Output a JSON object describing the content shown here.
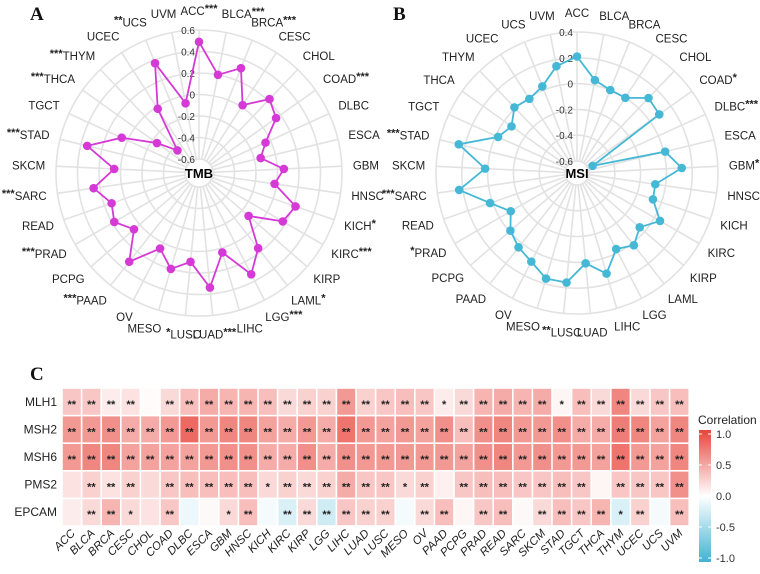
{
  "panels": {
    "a": "A",
    "b": "B",
    "c": "C"
  },
  "colors": {
    "tmb": "#d63ad6",
    "msi": "#45b8d6",
    "grid": "#e2e2e2",
    "neg": "#3fb4d2",
    "zero": "#ffffff",
    "pos": "#e8453c"
  },
  "chart_data": [
    {
      "type": "radar",
      "center_label": "TMB",
      "rlim": [
        -0.6,
        0.6
      ],
      "ticks": [
        "0.6",
        "0.4",
        "0.2",
        "0",
        "-0.2",
        "-0.4",
        "-0.6"
      ],
      "categories": [
        "ACC",
        "BLCA",
        "BRCA",
        "CESC",
        "CHOL",
        "COAD",
        "DLBC",
        "ESCA",
        "GBM",
        "HNSC",
        "KICH",
        "KIRC",
        "KIRP",
        "LAML",
        "LGG",
        "LIHC",
        "LUAD",
        "LUSC",
        "MESO",
        "OV",
        "PAAD",
        "PCPG",
        "PRAD",
        "READ",
        "SARC",
        "SKCM",
        "STAD",
        "TGCT",
        "THCA",
        "THYM",
        "UCEC",
        "UCS",
        "UVM"
      ],
      "values": [
        0.49,
        0.2,
        0.32,
        0.02,
        0.22,
        0.15,
        -0.05,
        -0.14,
        0.06,
        -0.02,
        0.22,
        0.17,
        -0.12,
        0.16,
        0.33,
        0.04,
        0.34,
        0.1,
        0.2,
        0.06,
        0.32,
        0.07,
        0.18,
        0.13,
        0.26,
        0.06,
        0.34,
        0.06,
        -0.25,
        -0.44,
        -0.02,
        0.37,
        -0.07
      ],
      "significance": [
        "***",
        "***",
        "***",
        "",
        "",
        "***",
        "",
        "",
        "",
        "",
        "*",
        "***",
        "",
        "*",
        "***",
        "",
        "***",
        "*",
        "",
        "",
        "***",
        "",
        "***",
        "",
        "***",
        "",
        "***",
        "",
        "***",
        "***",
        "",
        "**",
        ""
      ]
    },
    {
      "type": "radar",
      "center_label": "MSI",
      "rlim": [
        -0.6,
        0.4
      ],
      "ticks": [
        "0.4",
        "0.2",
        "0",
        "-0.2",
        "-0.4",
        "-0.6"
      ],
      "categories": [
        "ACC",
        "BLCA",
        "BRCA",
        "CESC",
        "CHOL",
        "COAD",
        "DLBC",
        "ESCA",
        "GBM",
        "HNSC",
        "KICH",
        "KIRC",
        "KIRP",
        "LAML",
        "LGG",
        "LIHC",
        "LUAD",
        "LUSC",
        "MESO",
        "OV",
        "PAAD",
        "PCPG",
        "PRAD",
        "READ",
        "SARC",
        "SKCM",
        "STAD",
        "TGCT",
        "THCA",
        "THYM",
        "UCEC",
        "UCS",
        "UVM"
      ],
      "values": [
        0.21,
        0.04,
        0.0,
        0.0,
        0.11,
        0.09,
        -0.56,
        0.01,
        0.12,
        -0.08,
        -0.07,
        0.05,
        -0.05,
        0.02,
        -0.03,
        0.12,
        0.01,
        0.16,
        0.16,
        0.08,
        0.04,
        -0.01,
        -0.1,
        0.02,
        0.23,
        0.02,
        0.25,
        -0.02,
        -0.07,
        0.01,
        -0.01,
        0.03,
        0.15
      ],
      "significance": [
        "",
        "",
        "",
        "",
        "",
        "*",
        "***",
        "",
        "*",
        "",
        "",
        "",
        "",
        "",
        "",
        "",
        "",
        "**",
        "",
        "",
        "",
        "",
        "*",
        "",
        "***",
        "",
        "***",
        "",
        "",
        "",
        "",
        "",
        ""
      ]
    },
    {
      "type": "heatmap",
      "rows": [
        "MLH1",
        "MSH2",
        "MSH6",
        "PMS2",
        "EPCAM"
      ],
      "columns": [
        "ACC",
        "BLCA",
        "BRCA",
        "CESC",
        "CHOL",
        "COAD",
        "DLBC",
        "ESCA",
        "GBM",
        "HNSC",
        "KICH",
        "KIRC",
        "KIRP",
        "LGG",
        "LIHC",
        "LUAD",
        "LUSC",
        "MESO",
        "OV",
        "PAAD",
        "PCPG",
        "PRAD",
        "READ",
        "SARC",
        "SKCM",
        "STAD",
        "TGCT",
        "THCA",
        "THYM",
        "UCEC",
        "UCS",
        "UVM"
      ],
      "values": [
        [
          0.3,
          0.3,
          0.1,
          0.15,
          0.02,
          0.2,
          0.35,
          0.45,
          0.4,
          0.4,
          0.35,
          0.2,
          0.25,
          0.25,
          0.55,
          0.25,
          0.3,
          0.35,
          0.3,
          0.1,
          0.2,
          0.4,
          0.45,
          0.4,
          0.45,
          0.05,
          0.35,
          0.2,
          0.65,
          0.2,
          0.3,
          0.35
        ],
        [
          0.55,
          0.55,
          0.6,
          0.45,
          0.45,
          0.55,
          0.8,
          0.55,
          0.65,
          0.65,
          0.5,
          0.45,
          0.55,
          0.45,
          0.75,
          0.55,
          0.5,
          0.55,
          0.5,
          0.6,
          0.35,
          0.6,
          0.65,
          0.55,
          0.55,
          0.6,
          0.45,
          0.45,
          0.7,
          0.65,
          0.5,
          0.65
        ],
        [
          0.55,
          0.65,
          0.65,
          0.5,
          0.5,
          0.5,
          0.5,
          0.55,
          0.6,
          0.6,
          0.45,
          0.45,
          0.6,
          0.45,
          0.6,
          0.55,
          0.55,
          0.55,
          0.55,
          0.55,
          0.5,
          0.6,
          0.65,
          0.55,
          0.6,
          0.55,
          0.55,
          0.5,
          0.75,
          0.55,
          0.5,
          0.65
        ],
        [
          0.15,
          0.25,
          0.15,
          0.25,
          0.2,
          0.3,
          0.35,
          0.35,
          0.35,
          0.35,
          0.2,
          0.25,
          0.2,
          0.25,
          0.45,
          0.3,
          0.3,
          0.2,
          0.25,
          0.08,
          0.3,
          0.35,
          0.35,
          0.3,
          0.3,
          0.35,
          0.3,
          0.05,
          0.3,
          0.3,
          0.3,
          0.6
        ],
        [
          0.1,
          0.2,
          0.4,
          0.2,
          0.15,
          0.3,
          -0.1,
          0.03,
          0.2,
          0.35,
          -0.05,
          -0.2,
          0.2,
          -0.25,
          0.3,
          0.25,
          0.25,
          -0.05,
          0.2,
          0.35,
          0.05,
          0.3,
          0.35,
          0.03,
          0.2,
          0.35,
          0.3,
          0.4,
          -0.2,
          0.25,
          -0.05,
          0.35
        ]
      ],
      "significance": [
        [
          "**",
          "**",
          "**",
          "**",
          "",
          "**",
          "**",
          "**",
          "**",
          "**",
          "**",
          "**",
          "**",
          "**",
          "**",
          "**",
          "**",
          "**",
          "**",
          "*",
          "**",
          "**",
          "**",
          "**",
          "**",
          "*",
          "**",
          "**",
          "**",
          "**",
          "**",
          "**"
        ],
        [
          "**",
          "**",
          "**",
          "**",
          "**",
          "**",
          "**",
          "**",
          "**",
          "**",
          "**",
          "**",
          "**",
          "**",
          "**",
          "**",
          "**",
          "**",
          "**",
          "**",
          "**",
          "**",
          "**",
          "**",
          "**",
          "**",
          "**",
          "**",
          "**",
          "**",
          "**",
          "**"
        ],
        [
          "**",
          "**",
          "**",
          "**",
          "**",
          "**",
          "**",
          "**",
          "**",
          "**",
          "**",
          "**",
          "**",
          "**",
          "**",
          "**",
          "**",
          "**",
          "**",
          "**",
          "**",
          "**",
          "**",
          "**",
          "**",
          "**",
          "**",
          "**",
          "**",
          "**",
          "**",
          "**"
        ],
        [
          "",
          "**",
          "**",
          "**",
          "",
          "**",
          "**",
          "**",
          "**",
          "**",
          "*",
          "**",
          "**",
          "**",
          "**",
          "**",
          "**",
          "*",
          "**",
          "",
          "**",
          "**",
          "**",
          "**",
          "**",
          "**",
          "**",
          "",
          "**",
          "**",
          "**",
          "**"
        ],
        [
          "",
          "**",
          "**",
          "*",
          "",
          "**",
          "",
          "",
          "*",
          "**",
          "",
          "**",
          "**",
          "**",
          "**",
          "**",
          "**",
          "",
          "**",
          "**",
          "",
          "**",
          "**",
          "",
          "**",
          "**",
          "**",
          "**",
          "*",
          "**",
          "",
          "**"
        ]
      ],
      "legend": {
        "title": "Correlation",
        "ticks": [
          "1.0",
          "0.5",
          "0.0",
          "-0.5",
          "-1.0"
        ],
        "range": [
          -1,
          1
        ]
      }
    }
  ]
}
